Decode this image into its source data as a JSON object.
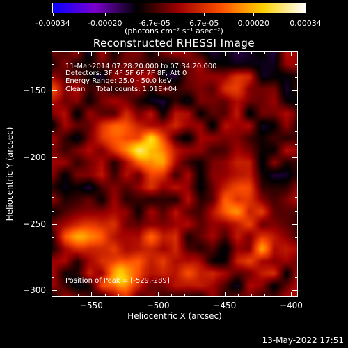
{
  "colorbar": {
    "tick_labels": [
      "-0.00034",
      "-0.00020",
      "-6.7e-05",
      "6.7e-05",
      "0.00020",
      "0.00034"
    ],
    "tick_values": [
      -0.00034,
      -0.0002,
      -6.7e-05,
      6.7e-05,
      0.0002,
      0.00034
    ],
    "range": [
      -0.00034,
      0.00034
    ],
    "unit_label": "(photons cm⁻² s⁻¹ asec⁻²)",
    "colors": [
      "#0a00ff",
      "#7a00d0",
      "#000000",
      "#a00000",
      "#ff5000",
      "#ffd200",
      "#ffffff"
    ]
  },
  "chart_data": {
    "type": "heatmap",
    "title": "Reconstructed RHESSI Image",
    "xlabel": "Heliocentric X (arcsec)",
    "ylabel": "Heliocentric Y (arcsec)",
    "xlim": [
      -580,
      -395
    ],
    "ylim": [
      -305,
      -120
    ],
    "x_ticks": [
      -550,
      -500,
      -450,
      -400
    ],
    "x_tick_labels": [
      "−550",
      "−500",
      "−450",
      "−400"
    ],
    "y_ticks": [
      -150,
      -200,
      -250,
      -300
    ],
    "y_tick_labels": [
      "−150",
      "−200",
      "−250",
      "−300"
    ],
    "grid": false,
    "value_range": [
      -0.00034,
      0.00034
    ],
    "sources": [
      {
        "x": -529,
        "y": -289,
        "amp": 1.0,
        "sigma": 9
      },
      {
        "x": -505,
        "y": -197,
        "amp": 0.85,
        "sigma": 13
      },
      {
        "x": -530,
        "y": -185,
        "amp": 0.5,
        "sigma": 11
      },
      {
        "x": -555,
        "y": -260,
        "amp": 0.55,
        "sigma": 12
      },
      {
        "x": -510,
        "y": -265,
        "amp": 0.45,
        "sigma": 13
      },
      {
        "x": -440,
        "y": -235,
        "amp": 0.55,
        "sigma": 14
      },
      {
        "x": -420,
        "y": -270,
        "amp": 0.5,
        "sigma": 12
      },
      {
        "x": -475,
        "y": -280,
        "amp": 0.35,
        "sigma": 10
      },
      {
        "x": -440,
        "y": -150,
        "amp": 0.25,
        "sigma": 9
      },
      {
        "x": -575,
        "y": -150,
        "amp": 0.25,
        "sigma": 8
      }
    ],
    "peak": {
      "x": -529,
      "y": -289
    }
  },
  "info": {
    "time_range": "11-Mar-2014 07:28:20.000 to 07:34:20.000",
    "detectors": "Detectors: 3F 4F 5F 6F 7F 8F, Att 0",
    "energy": "Energy Range: 25.0 - 50.0 keV",
    "method_counts": "Clean     Total counts: 1.01E+04",
    "peak_position": "Position of Peak = [-529,-289]"
  },
  "timestamp": "13-May-2022 17:51"
}
